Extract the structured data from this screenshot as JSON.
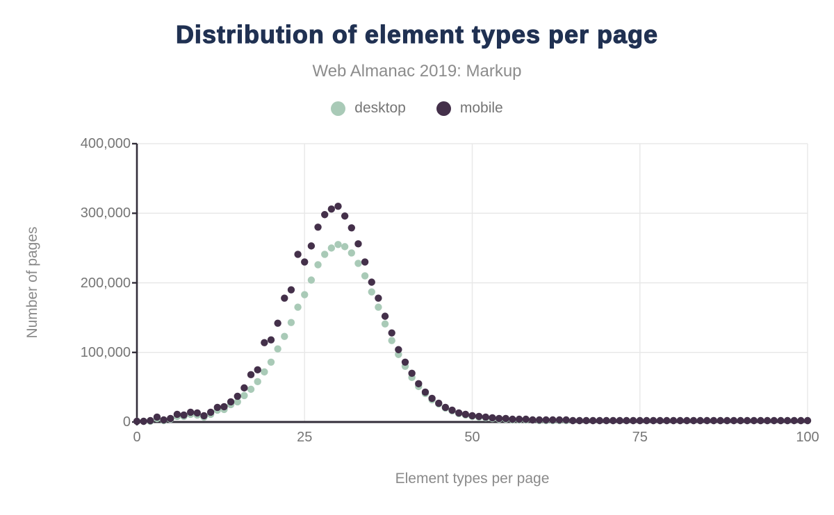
{
  "header": {
    "title": "Distribution of element types per page",
    "subtitle": "Web Almanac 2019: Markup"
  },
  "legend": {
    "items": [
      {
        "label": "desktop",
        "color": "#a9cab7"
      },
      {
        "label": "mobile",
        "color": "#44304a"
      }
    ]
  },
  "colors": {
    "title": "#203152",
    "subtitle": "#8c8c8c",
    "tick_text": "#757575",
    "axis_line": "#332e3a",
    "gridline": "#e8e8e8",
    "background": "#ffffff",
    "desktop": "#a9cab7",
    "mobile": "#44304a"
  },
  "chart_data": {
    "type": "scatter",
    "title": "Distribution of element types per page",
    "subtitle": "Web Almanac 2019: Markup",
    "xlabel": "Element types per page",
    "ylabel": "Number of pages",
    "xlim": [
      0,
      100
    ],
    "ylim": [
      0,
      400000
    ],
    "x_ticks": [
      0,
      25,
      50,
      75,
      100
    ],
    "x_tick_labels": [
      "0",
      "25",
      "50",
      "75",
      "100"
    ],
    "y_ticks": [
      0,
      100000,
      200000,
      300000,
      400000
    ],
    "y_tick_labels": [
      "0",
      "100,000",
      "200,000",
      "300,000",
      "400,000"
    ],
    "grid": true,
    "legend_position": "top",
    "x": [
      0,
      1,
      2,
      3,
      4,
      5,
      6,
      7,
      8,
      9,
      10,
      11,
      12,
      13,
      14,
      15,
      16,
      17,
      18,
      19,
      20,
      21,
      22,
      23,
      24,
      25,
      26,
      27,
      28,
      29,
      30,
      31,
      32,
      33,
      34,
      35,
      36,
      37,
      38,
      39,
      40,
      41,
      42,
      43,
      44,
      45,
      46,
      47,
      48,
      49,
      50,
      51,
      52,
      53,
      54,
      55,
      56,
      57,
      58,
      59,
      60,
      61,
      62,
      63,
      64,
      65,
      66,
      67,
      68,
      69,
      70,
      71,
      72,
      73,
      74,
      75,
      76,
      77,
      78,
      79,
      80,
      81,
      82,
      83,
      84,
      85,
      86,
      87,
      88,
      89,
      90,
      91,
      92,
      93,
      94,
      95,
      96,
      97,
      98,
      99,
      100
    ],
    "series": [
      {
        "name": "desktop",
        "color": "#a9cab7",
        "values": [
          1000,
          1000,
          1000,
          5000,
          2000,
          4000,
          8000,
          8000,
          11000,
          10000,
          7000,
          11000,
          17000,
          18000,
          25000,
          29000,
          38000,
          47000,
          58000,
          72000,
          86000,
          105000,
          123000,
          143000,
          165000,
          183000,
          204000,
          226000,
          241000,
          250000,
          255000,
          252000,
          243000,
          228000,
          210000,
          187000,
          165000,
          141000,
          117000,
          97000,
          80000,
          64000,
          51000,
          41000,
          32000,
          26000,
          20000,
          16000,
          12000,
          10000,
          8000,
          7000,
          6000,
          5000,
          4000,
          4000,
          3000,
          3000,
          3000,
          3000,
          2000,
          2000,
          2000,
          2000,
          2000,
          2000,
          2000,
          2000,
          2000,
          2000,
          2000,
          2000,
          2000,
          2000,
          2000,
          2000,
          2000,
          2000,
          2000,
          2000,
          2000,
          2000,
          2000,
          2000,
          2000,
          2000,
          2000,
          2000,
          2000,
          2000,
          2000,
          2000,
          2000,
          2000,
          2000,
          2000,
          2000,
          2000,
          2000,
          2000,
          2000
        ]
      },
      {
        "name": "mobile",
        "color": "#44304a",
        "values": [
          1000,
          1000,
          2000,
          7000,
          3000,
          5000,
          11000,
          10000,
          14000,
          13000,
          9000,
          14000,
          21000,
          22000,
          29000,
          37000,
          49000,
          68000,
          75000,
          114000,
          118000,
          142000,
          178000,
          190000,
          241000,
          230000,
          253000,
          280000,
          298000,
          306000,
          310000,
          296000,
          279000,
          256000,
          230000,
          201000,
          178000,
          152000,
          128000,
          104000,
          86000,
          70000,
          55000,
          43000,
          34000,
          27000,
          21000,
          17000,
          13000,
          11000,
          9000,
          8000,
          7000,
          6000,
          5000,
          5000,
          4000,
          4000,
          4000,
          3000,
          3000,
          3000,
          3000,
          3000,
          3000,
          2000,
          2000,
          2000,
          2000,
          2000,
          2000,
          2000,
          2000,
          2000,
          2000,
          2000,
          2000,
          2000,
          2000,
          2000,
          2000,
          2000,
          2000,
          2000,
          2000,
          2000,
          2000,
          2000,
          2000,
          2000,
          2000,
          2000,
          2000,
          2000,
          2000,
          2000,
          2000,
          2000,
          2000,
          2000,
          2000
        ]
      }
    ]
  }
}
